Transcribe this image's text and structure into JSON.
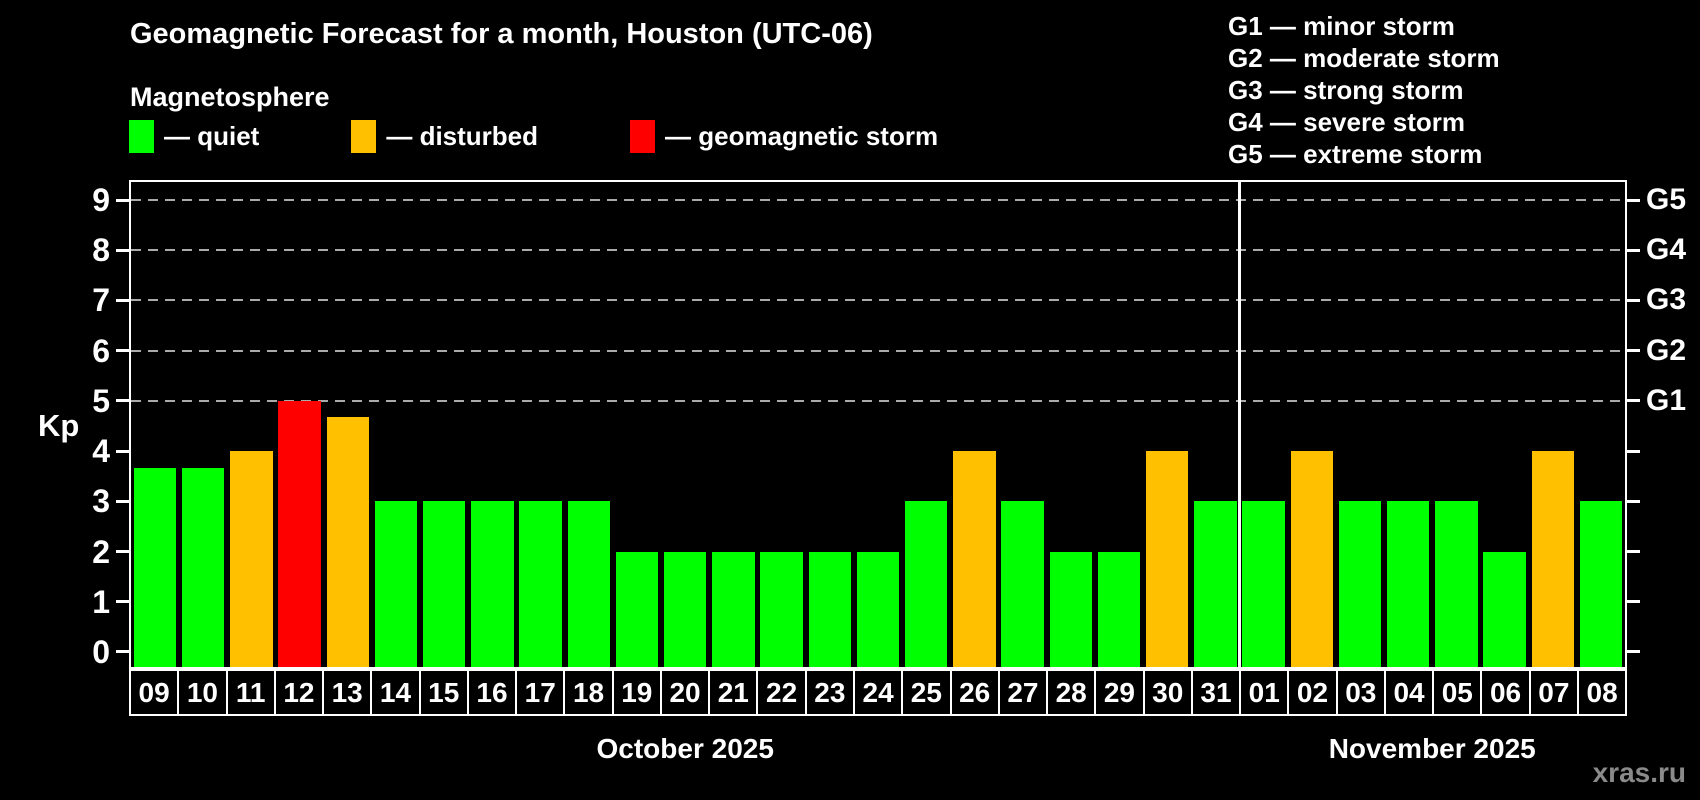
{
  "watermark": "xras.ru",
  "colors": {
    "quiet": "#00ff00",
    "disturbed": "#ffc000",
    "storm": "#ff0000",
    "background": "#000000",
    "text": "#ffffff",
    "gridline": "#aaaaaa",
    "watermark": "#8a8a8a"
  },
  "legend": {
    "items": [
      {
        "status": "quiet",
        "label": "— quiet"
      },
      {
        "status": "disturbed",
        "label": "— disturbed"
      },
      {
        "status": "storm",
        "label": "— geomagnetic storm"
      }
    ]
  },
  "g_legend": {
    "lines": [
      "G1 — minor storm",
      "G2 — moderate storm",
      "G3 — strong storm",
      "G4 — severe storm",
      "G5 — extreme storm"
    ]
  },
  "chart_data": {
    "type": "bar",
    "title": "Geomagnetic Forecast for a month, Houston (UTC-06)",
    "subtitle": "Magnetosphere",
    "ylabel": "Kp",
    "ylim": [
      -0.3,
      9.36
    ],
    "yticks": [
      0,
      1,
      2,
      3,
      4,
      5,
      6,
      7,
      8,
      9
    ],
    "gridlines": [
      5,
      6,
      7,
      8,
      9
    ],
    "right_labels": [
      {
        "kp": 5,
        "text": "G1"
      },
      {
        "kp": 6,
        "text": "G2"
      },
      {
        "kp": 7,
        "text": "G3"
      },
      {
        "kp": 8,
        "text": "G4"
      },
      {
        "kp": 9,
        "text": "G5"
      }
    ],
    "months": [
      {
        "label": "October 2025",
        "days": 23
      },
      {
        "label": "November 2025",
        "days": 8
      }
    ],
    "categories": [
      "09",
      "10",
      "11",
      "12",
      "13",
      "14",
      "15",
      "16",
      "17",
      "18",
      "19",
      "20",
      "21",
      "22",
      "23",
      "24",
      "25",
      "26",
      "27",
      "28",
      "29",
      "30",
      "31",
      "01",
      "02",
      "03",
      "04",
      "05",
      "06",
      "07",
      "08"
    ],
    "values": [
      3.67,
      3.67,
      4,
      5,
      4.67,
      3,
      3,
      3,
      3,
      3,
      2,
      2,
      2,
      2,
      2,
      2,
      3,
      4,
      3,
      2,
      2,
      4,
      3,
      3,
      4,
      3,
      3,
      3,
      2,
      4,
      3
    ],
    "statuses": [
      "quiet",
      "quiet",
      "disturbed",
      "storm",
      "disturbed",
      "quiet",
      "quiet",
      "quiet",
      "quiet",
      "quiet",
      "quiet",
      "quiet",
      "quiet",
      "quiet",
      "quiet",
      "quiet",
      "quiet",
      "disturbed",
      "quiet",
      "quiet",
      "quiet",
      "disturbed",
      "quiet",
      "quiet",
      "disturbed",
      "quiet",
      "quiet",
      "quiet",
      "quiet",
      "disturbed",
      "quiet"
    ],
    "grid": "dashed horizontal at Kp 5-9",
    "legend_position": "top-left and top-right"
  }
}
